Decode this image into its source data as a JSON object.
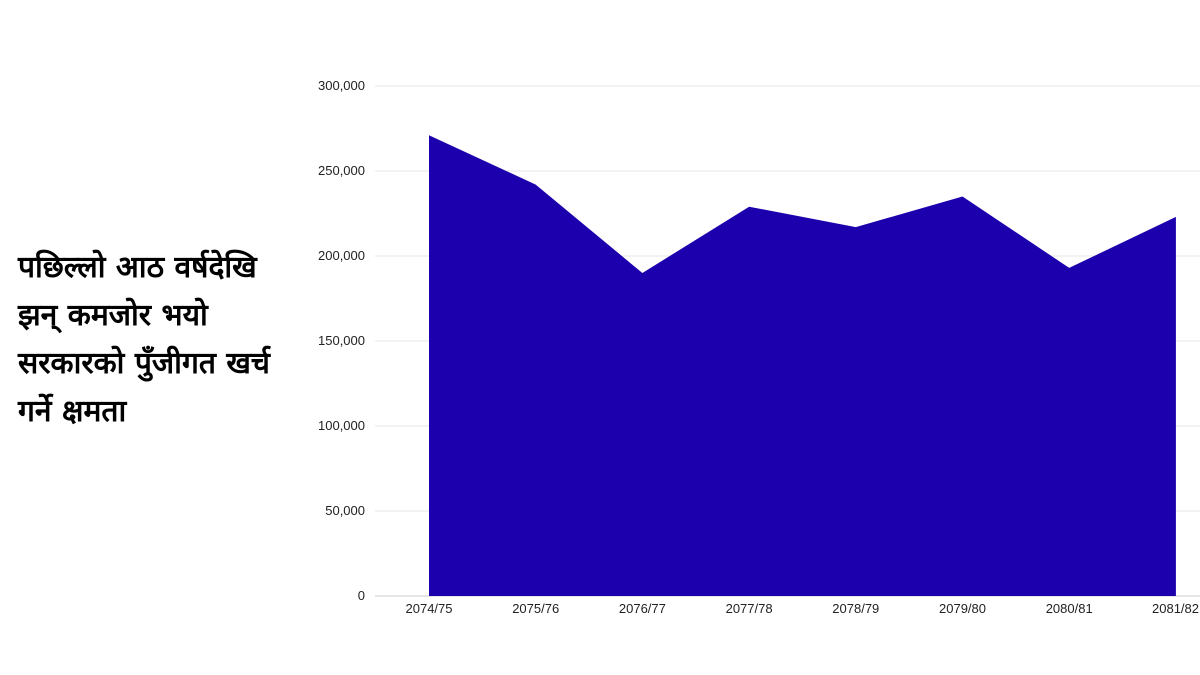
{
  "headline": {
    "lines": [
      "पछिल्लो आठ वर्षदेखि",
      "झन् कमजोर भयो",
      "सरकारको पुँजीगत खर्च",
      "गर्ने  क्षमता"
    ]
  },
  "chart_data": {
    "type": "area",
    "title": "",
    "xlabel": "",
    "ylabel": "",
    "categories": [
      "2074/75",
      "2075/76",
      "2076/77",
      "2077/78",
      "2078/79",
      "2079/80",
      "2080/81",
      "2081/82"
    ],
    "values": [
      271000,
      242000,
      190000,
      229000,
      217000,
      235000,
      193000,
      223000
    ],
    "ylim": [
      0,
      300000
    ],
    "yticks": [
      "0",
      "50,000",
      "100,000",
      "150,000",
      "200,000",
      "250,000",
      "300,000"
    ],
    "grid": true,
    "legend": "none",
    "colors": {
      "fill": "#1c00ad",
      "grid": "#e6e6e6",
      "axis": "#cccccc"
    }
  }
}
